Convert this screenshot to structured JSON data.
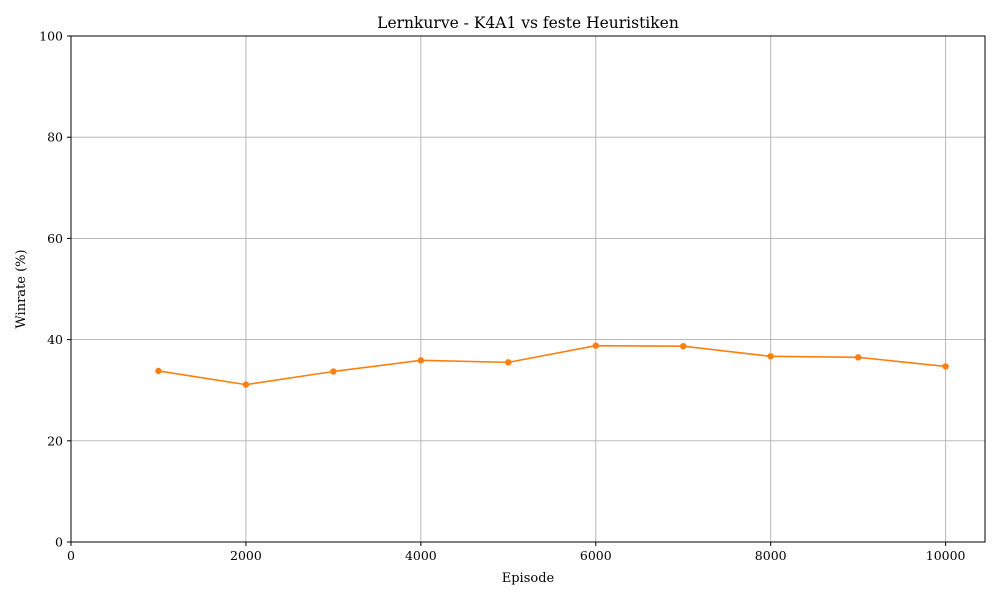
{
  "chart_data": {
    "type": "line",
    "title": "Lernkurve - K4A1 vs feste Heuristiken",
    "xlabel": "Episode",
    "ylabel": "Winrate (%)",
    "xlim": [
      0,
      10450
    ],
    "ylim": [
      0,
      100
    ],
    "xticks": [
      0,
      2000,
      4000,
      6000,
      8000,
      10000
    ],
    "yticks": [
      0,
      20,
      40,
      60,
      80,
      100
    ],
    "grid": true,
    "series": [
      {
        "color": "#ff7f0e",
        "marker": "circle",
        "x": [
          1000,
          2000,
          3000,
          4000,
          5000,
          6000,
          7000,
          8000,
          9000,
          10000
        ],
        "y": [
          33.8,
          31.1,
          33.7,
          35.9,
          35.5,
          38.8,
          38.7,
          36.7,
          36.5,
          34.7
        ]
      }
    ]
  }
}
